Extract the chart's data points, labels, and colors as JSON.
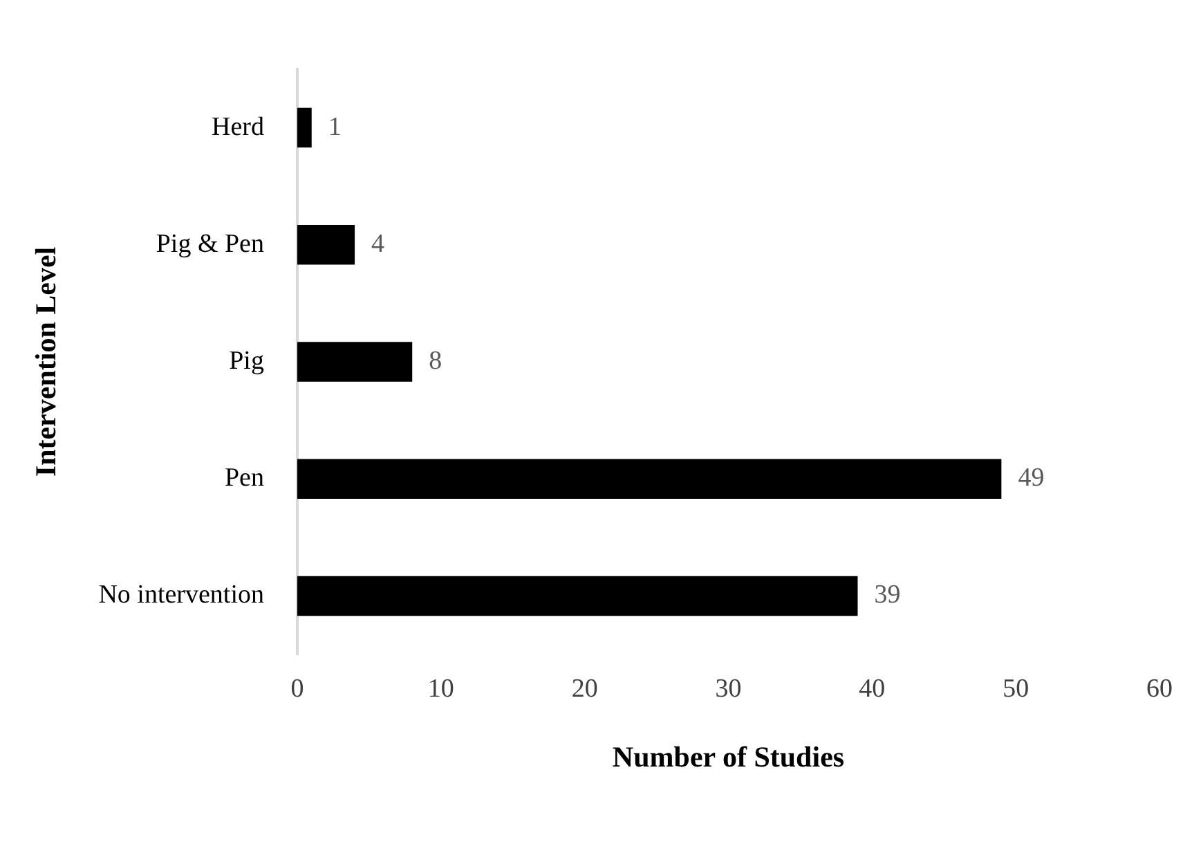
{
  "chart_data": {
    "type": "bar",
    "orientation": "horizontal",
    "xlabel": "Number of Studies",
    "ylabel": "Intervention Level",
    "categories": [
      "Herd",
      "Pig & Pen",
      "Pig",
      "Pen",
      "No intervention"
    ],
    "values": [
      1,
      4,
      8,
      49,
      39
    ],
    "color": "#000000",
    "xlim": [
      0,
      60
    ],
    "xticks": [
      0,
      10,
      20,
      30,
      40,
      50,
      60
    ],
    "grid": false,
    "legend": false,
    "data_labels": true
  }
}
